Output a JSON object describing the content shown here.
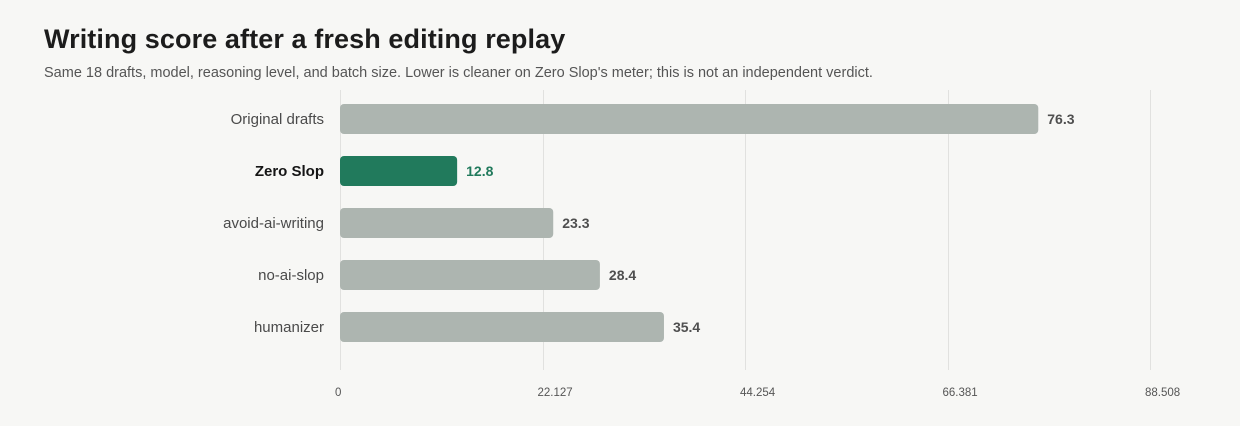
{
  "title": "Writing score after a fresh editing replay",
  "subtitle": "Same 18 drafts, model, reasoning level, and batch size. Lower is cleaner on Zero Slop's meter; this is not an independent verdict.",
  "colors": {
    "background": "#f7f7f5",
    "bar_default": "#adb5b0",
    "bar_highlight": "#217a5c",
    "gridline": "#e1e1df",
    "value_default": "#4f4f4f",
    "value_highlight": "#217a5c"
  },
  "chart_data": {
    "type": "bar",
    "orientation": "horizontal",
    "title": "Writing score after a fresh editing replay",
    "subtitle": "Same 18 drafts, model, reasoning level, and batch size. Lower is cleaner on Zero Slop's meter; this is not an independent verdict.",
    "categories": [
      "Original drafts",
      "Zero Slop",
      "avoid-ai-writing",
      "no-ai-slop",
      "humanizer"
    ],
    "values": [
      76.3,
      12.8,
      23.3,
      28.4,
      35.4
    ],
    "value_labels": [
      "76.3",
      "12.8",
      "23.3",
      "28.4",
      "35.4"
    ],
    "highlight": "Zero Slop",
    "xlim": [
      0,
      88.508
    ],
    "xticks": [
      0,
      22.127,
      44.254,
      66.381,
      88.508
    ],
    "xtick_labels": [
      "0",
      "22.127",
      "44.254",
      "66.381",
      "88.508"
    ],
    "xlabel": "",
    "ylabel": "",
    "grid": true
  }
}
